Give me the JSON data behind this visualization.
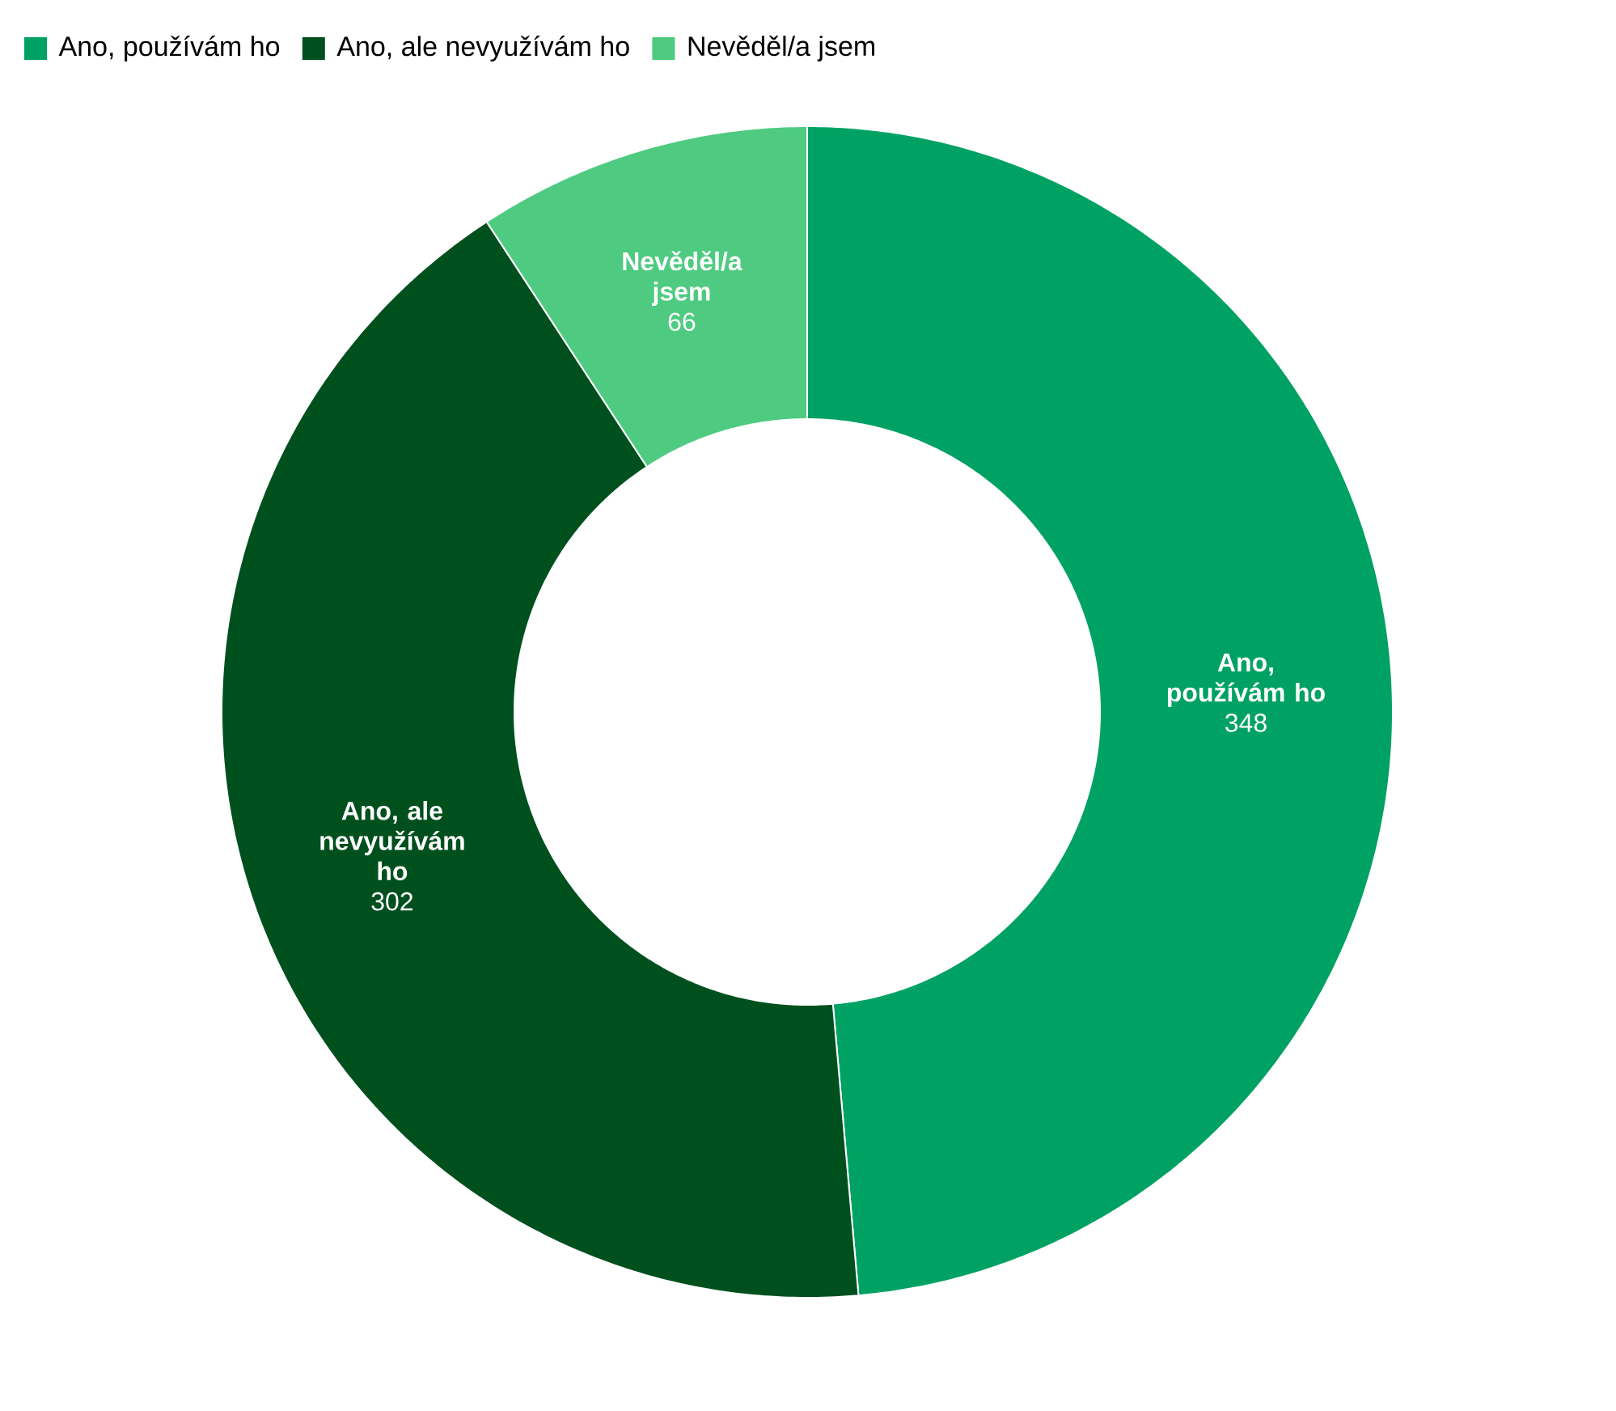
{
  "chart_data": {
    "type": "donut",
    "categories": [
      "Ano, používám ho",
      "Ano, ale nevyužívám ho",
      "Nevěděl/a jsem"
    ],
    "values": [
      348,
      302,
      66
    ],
    "colors": [
      "#00a264",
      "#00501e",
      "#4ecb80"
    ],
    "data_labels": true,
    "legend": "top left"
  }
}
